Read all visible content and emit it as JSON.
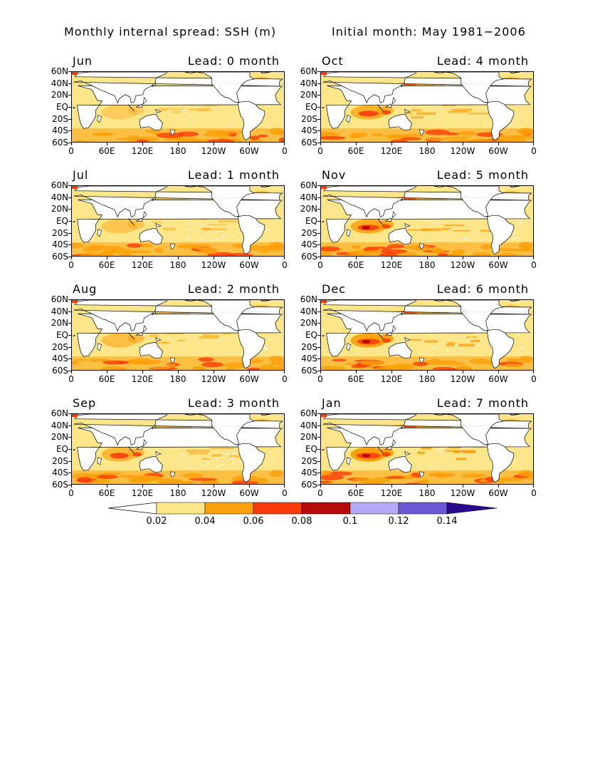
{
  "header": {
    "left": "Monthly internal spread: SSH (m)",
    "right": "Initial month: May 1981−2006"
  },
  "axes": {
    "y_labels": [
      "60N",
      "40N",
      "20N",
      "EQ",
      "20S",
      "40S",
      "60S"
    ],
    "x_labels": [
      "0",
      "60E",
      "120E",
      "180",
      "120W",
      "60W",
      "0"
    ]
  },
  "panels": [
    {
      "month": "Jun",
      "lead": "Lead: 0 month",
      "lead_months": 0
    },
    {
      "month": "Oct",
      "lead": "Lead: 4 month",
      "lead_months": 4
    },
    {
      "month": "Jul",
      "lead": "Lead: 1 month",
      "lead_months": 1
    },
    {
      "month": "Nov",
      "lead": "Lead: 5 month",
      "lead_months": 5
    },
    {
      "month": "Aug",
      "lead": "Lead: 2 month",
      "lead_months": 2
    },
    {
      "month": "Dec",
      "lead": "Lead: 6 month",
      "lead_months": 6
    },
    {
      "month": "Sep",
      "lead": "Lead: 3 month",
      "lead_months": 3
    },
    {
      "month": "Jan",
      "lead": "Lead: 7 month",
      "lead_months": 7
    }
  ],
  "colorbar": {
    "labels": [
      "0.02",
      "0.04",
      "0.06",
      "0.08",
      "0.1",
      "0.12",
      "0.14"
    ],
    "colors": [
      "#ffffff",
      "#fde68a",
      "#fb9f0a",
      "#fa3c0a",
      "#b40a0a",
      "#b4aaf5",
      "#6a5ad8",
      "#2a0a8c"
    ]
  }
}
